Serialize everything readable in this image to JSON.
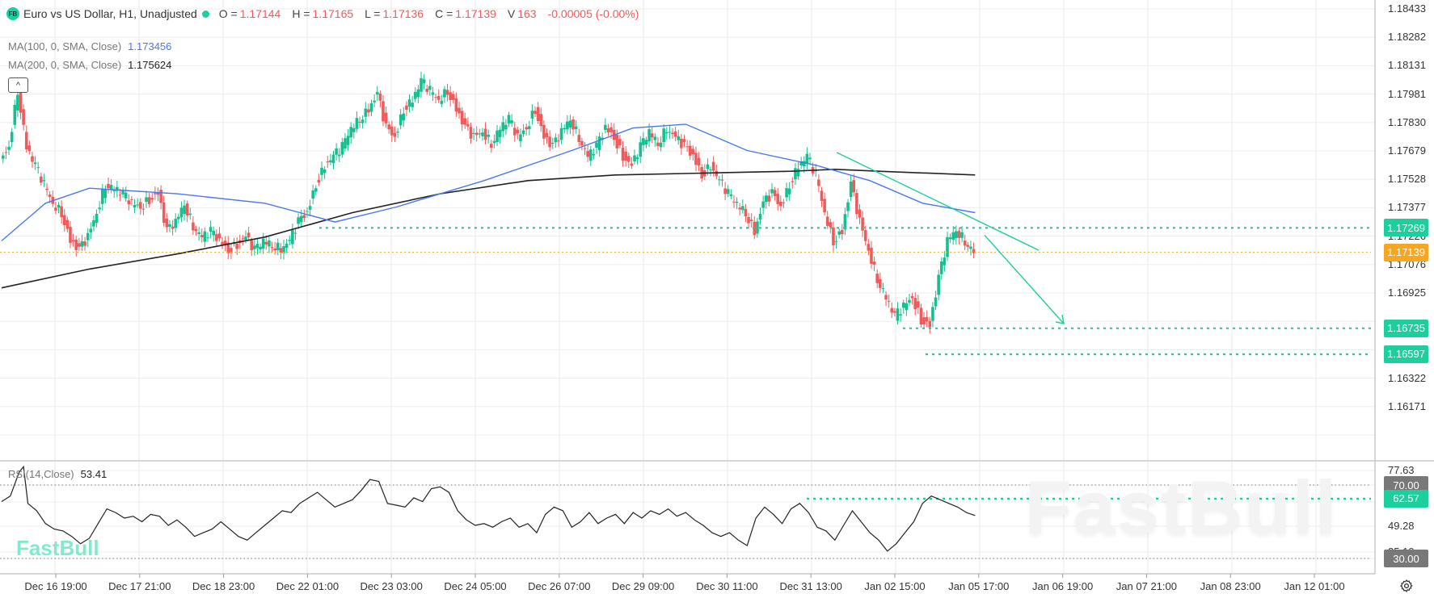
{
  "header": {
    "logo_text": "FB",
    "title": "Euro vs US Dollar, H1, Unadjusted",
    "status_color": "#1ccf9c",
    "ohlc": [
      {
        "label": "O =",
        "value": "1.17144"
      },
      {
        "label": "H =",
        "value": "1.17165"
      },
      {
        "label": "L =",
        "value": "1.17136"
      },
      {
        "label": "C =",
        "value": "1.17139"
      },
      {
        "label": "V",
        "value": "163"
      }
    ],
    "change": "-0.00005 (-0.00%)"
  },
  "indicators": {
    "ma100": {
      "label": "MA(100, 0, SMA, Close)",
      "value": "1.173456",
      "color": "#4a78f0"
    },
    "ma200": {
      "label": "MA(200, 0, SMA, Close)",
      "value": "1.175624",
      "color": "#222222"
    },
    "rsi": {
      "label": "RSI(14,Close)",
      "value": "53.41"
    }
  },
  "collapse_icon": "^",
  "price_axis": {
    "ticks": [
      "1.18433",
      "1.18282",
      "1.18131",
      "1.17981",
      "1.17830",
      "1.17679",
      "1.17528",
      "1.17377",
      "1.17226",
      "1.17076",
      "1.16925",
      "1.16774",
      "1.16472",
      "1.16322",
      "1.16171"
    ],
    "badges": [
      {
        "value": "1.17269",
        "color": "#1ccf9c"
      },
      {
        "value": "1.17139",
        "color": "#f5a623"
      },
      {
        "value": "1.16735",
        "color": "#1ccf9c"
      },
      {
        "value": "1.16597",
        "color": "#1ccf9c"
      }
    ]
  },
  "rsi_axis": {
    "ticks": [
      "77.63",
      "49.28",
      "35.10"
    ],
    "badges": [
      {
        "value": "70.00",
        "color": "#787878"
      },
      {
        "value": "62.57",
        "color": "#1ccf9c"
      },
      {
        "value": "30.00",
        "color": "#787878"
      }
    ]
  },
  "x_axis": {
    "labels": [
      "Dec 16 19:00",
      "Dec 17 21:00",
      "Dec 18 23:00",
      "Dec 22 01:00",
      "Dec 23 03:00",
      "Dec 24 05:00",
      "Dec 26 07:00",
      "Dec 29 09:00",
      "Dec 30 11:00",
      "Dec 31 13:00",
      "Jan 02 15:00",
      "Jan 05 17:00",
      "Jan 06 19:00",
      "Jan 07 21:00",
      "Jan 08 23:00",
      "Jan 12 01:00"
    ]
  },
  "watermark": "FastBull",
  "colors": {
    "up": "#12c18f",
    "down": "#f05a5a",
    "ma100": "#4a78f0",
    "ma200": "#222222",
    "level": "#1ccf9c",
    "last": "#f5a623"
  },
  "chart_data": {
    "type": "candlestick",
    "title": "Euro vs US Dollar, H1, Unadjusted",
    "symbol": "EURUSD",
    "timeframe": "H1",
    "last_bar": {
      "open": 1.17144,
      "high": 1.17165,
      "low": 1.17136,
      "close": 1.17139,
      "volume": 163
    },
    "ylim": [
      1.1609,
      1.185
    ],
    "x_ticks": [
      "Dec 16 19:00",
      "Dec 17 21:00",
      "Dec 18 23:00",
      "Dec 22 01:00",
      "Dec 23 03:00",
      "Dec 24 05:00",
      "Dec 26 07:00",
      "Dec 29 09:00",
      "Dec 30 11:00",
      "Dec 31 13:00",
      "Jan 02 15:00",
      "Jan 05 17:00",
      "Jan 06 19:00",
      "Jan 07 21:00",
      "Jan 08 23:00",
      "Jan 12 01:00"
    ],
    "close_path": [
      [
        0,
        1.1762
      ],
      [
        10,
        1.177
      ],
      [
        20,
        1.18
      ],
      [
        30,
        1.177
      ],
      [
        40,
        1.176
      ],
      [
        50,
        1.175
      ],
      [
        60,
        1.174
      ],
      [
        70,
        1.1735
      ],
      [
        80,
        1.172
      ],
      [
        90,
        1.1715
      ],
      [
        100,
        1.1722
      ],
      [
        110,
        1.1735
      ],
      [
        120,
        1.175
      ],
      [
        130,
        1.1748
      ],
      [
        140,
        1.1745
      ],
      [
        150,
        1.174
      ],
      [
        160,
        1.1738
      ],
      [
        170,
        1.1742
      ],
      [
        180,
        1.1745
      ],
      [
        190,
        1.1725
      ],
      [
        200,
        1.173
      ],
      [
        210,
        1.174
      ],
      [
        220,
        1.1728
      ],
      [
        230,
        1.1722
      ],
      [
        240,
        1.1725
      ],
      [
        250,
        1.172
      ],
      [
        260,
        1.1715
      ],
      [
        270,
        1.1718
      ],
      [
        280,
        1.1722
      ],
      [
        290,
        1.1715
      ],
      [
        300,
        1.172
      ],
      [
        310,
        1.1718
      ],
      [
        320,
        1.1716
      ],
      [
        330,
        1.172
      ],
      [
        340,
        1.173
      ],
      [
        350,
        1.1735
      ],
      [
        360,
        1.175
      ],
      [
        370,
        1.176
      ],
      [
        380,
        1.1765
      ],
      [
        390,
        1.177
      ],
      [
        400,
        1.178
      ],
      [
        410,
        1.1785
      ],
      [
        420,
        1.179
      ],
      [
        430,
        1.1798
      ],
      [
        440,
        1.178
      ],
      [
        450,
        1.1775
      ],
      [
        460,
        1.179
      ],
      [
        470,
        1.1795
      ],
      [
        480,
        1.1805
      ],
      [
        490,
        1.18
      ],
      [
        500,
        1.1795
      ],
      [
        510,
        1.18
      ],
      [
        520,
        1.179
      ],
      [
        530,
        1.178
      ],
      [
        540,
        1.1775
      ],
      [
        550,
        1.1778
      ],
      [
        560,
        1.1772
      ],
      [
        570,
        1.178
      ],
      [
        580,
        1.1785
      ],
      [
        590,
        1.1775
      ],
      [
        600,
        1.178
      ],
      [
        610,
        1.179
      ],
      [
        620,
        1.1775
      ],
      [
        630,
        1.177
      ],
      [
        640,
        1.1778
      ],
      [
        650,
        1.1785
      ],
      [
        660,
        1.1775
      ],
      [
        670,
        1.1765
      ],
      [
        680,
        1.177
      ],
      [
        690,
        1.178
      ],
      [
        700,
        1.1775
      ],
      [
        710,
        1.1765
      ],
      [
        720,
        1.176
      ],
      [
        730,
        1.177
      ],
      [
        740,
        1.1778
      ],
      [
        750,
        1.1772
      ],
      [
        760,
        1.178
      ],
      [
        770,
        1.1775
      ],
      [
        780,
        1.177
      ],
      [
        790,
        1.1765
      ],
      [
        800,
        1.1755
      ],
      [
        810,
        1.176
      ],
      [
        820,
        1.1752
      ],
      [
        830,
        1.1745
      ],
      [
        840,
        1.174
      ],
      [
        850,
        1.1735
      ],
      [
        860,
        1.1725
      ],
      [
        870,
        1.174
      ],
      [
        880,
        1.1745
      ],
      [
        890,
        1.1738
      ],
      [
        900,
        1.175
      ],
      [
        910,
        1.176
      ],
      [
        920,
        1.1765
      ],
      [
        930,
        1.1755
      ],
      [
        940,
        1.1735
      ],
      [
        950,
        1.172
      ],
      [
        960,
        1.1725
      ],
      [
        970,
        1.175
      ],
      [
        980,
        1.173
      ],
      [
        990,
        1.1715
      ],
      [
        1000,
        1.17
      ],
      [
        1010,
        1.169
      ],
      [
        1020,
        1.168
      ],
      [
        1030,
        1.1685
      ],
      [
        1040,
        1.169
      ],
      [
        1050,
        1.1678
      ],
      [
        1060,
        1.1675
      ],
      [
        1070,
        1.17
      ],
      [
        1080,
        1.172
      ],
      [
        1090,
        1.1726
      ],
      [
        1100,
        1.172
      ],
      [
        1110,
        1.1714
      ]
    ],
    "ma100_path": [
      [
        0,
        1.172
      ],
      [
        50,
        1.174
      ],
      [
        100,
        1.1748
      ],
      [
        200,
        1.1745
      ],
      [
        300,
        1.174
      ],
      [
        380,
        1.173
      ],
      [
        450,
        1.1738
      ],
      [
        550,
        1.1752
      ],
      [
        650,
        1.1768
      ],
      [
        720,
        1.178
      ],
      [
        780,
        1.1782
      ],
      [
        850,
        1.1768
      ],
      [
        930,
        1.176
      ],
      [
        990,
        1.1752
      ],
      [
        1050,
        1.174
      ],
      [
        1110,
        1.1735
      ]
    ],
    "ma200_path": [
      [
        0,
        1.1695
      ],
      [
        100,
        1.1705
      ],
      [
        200,
        1.1713
      ],
      [
        300,
        1.1722
      ],
      [
        400,
        1.1735
      ],
      [
        500,
        1.1745
      ],
      [
        600,
        1.1752
      ],
      [
        700,
        1.1755
      ],
      [
        800,
        1.1756
      ],
      [
        900,
        1.1757
      ],
      [
        950,
        1.1758
      ],
      [
        1000,
        1.1757
      ],
      [
        1110,
        1.1755
      ]
    ],
    "levels": [
      1.17269,
      1.16735,
      1.16597
    ],
    "last_price": 1.17139,
    "trendline": {
      "from": [
        1035,
        1.1767
      ],
      "to": [
        1285,
        1.1715
      ]
    },
    "arrow": {
      "from": [
        1218,
        1.1723
      ],
      "to": [
        1316,
        1.1676
      ]
    },
    "rsi": {
      "period": 14,
      "value": 53.41,
      "levels": [
        70,
        30
      ],
      "marker": 62.57,
      "ylim": [
        25,
        82
      ],
      "series": [
        [
          0,
          61
        ],
        [
          10,
          64
        ],
        [
          20,
          77
        ],
        [
          25,
          80
        ],
        [
          30,
          60
        ],
        [
          40,
          56
        ],
        [
          50,
          49
        ],
        [
          60,
          46
        ],
        [
          70,
          45
        ],
        [
          80,
          42
        ],
        [
          90,
          38
        ],
        [
          100,
          41
        ],
        [
          110,
          49
        ],
        [
          120,
          57
        ],
        [
          130,
          55
        ],
        [
          140,
          52
        ],
        [
          150,
          53
        ],
        [
          160,
          50
        ],
        [
          170,
          54
        ],
        [
          180,
          53
        ],
        [
          190,
          48
        ],
        [
          200,
          51
        ],
        [
          210,
          47
        ],
        [
          220,
          42
        ],
        [
          230,
          44
        ],
        [
          240,
          46
        ],
        [
          250,
          50
        ],
        [
          260,
          46
        ],
        [
          270,
          42
        ],
        [
          280,
          40
        ],
        [
          290,
          44
        ],
        [
          300,
          48
        ],
        [
          310,
          52
        ],
        [
          320,
          56
        ],
        [
          330,
          55
        ],
        [
          340,
          60
        ],
        [
          350,
          63
        ],
        [
          360,
          66
        ],
        [
          370,
          62
        ],
        [
          380,
          58
        ],
        [
          390,
          60
        ],
        [
          400,
          62
        ],
        [
          410,
          67
        ],
        [
          420,
          73
        ],
        [
          430,
          72
        ],
        [
          440,
          60
        ],
        [
          450,
          59
        ],
        [
          460,
          58
        ],
        [
          470,
          63
        ],
        [
          480,
          61
        ],
        [
          490,
          68
        ],
        [
          500,
          69
        ],
        [
          510,
          66
        ],
        [
          520,
          56
        ],
        [
          530,
          51
        ],
        [
          540,
          48
        ],
        [
          550,
          49
        ],
        [
          560,
          47
        ],
        [
          570,
          50
        ],
        [
          580,
          52
        ],
        [
          590,
          47
        ],
        [
          600,
          49
        ],
        [
          610,
          44
        ],
        [
          620,
          54
        ],
        [
          630,
          58
        ],
        [
          640,
          56
        ],
        [
          650,
          47
        ],
        [
          660,
          50
        ],
        [
          670,
          55
        ],
        [
          680,
          49
        ],
        [
          690,
          52
        ],
        [
          700,
          54
        ],
        [
          710,
          49
        ],
        [
          720,
          55
        ],
        [
          730,
          52
        ],
        [
          740,
          56
        ],
        [
          750,
          54
        ],
        [
          760,
          57
        ],
        [
          770,
          53
        ],
        [
          780,
          55
        ],
        [
          790,
          51
        ],
        [
          800,
          48
        ],
        [
          810,
          44
        ],
        [
          820,
          42
        ],
        [
          830,
          44
        ],
        [
          840,
          40
        ],
        [
          850,
          37
        ],
        [
          860,
          52
        ],
        [
          870,
          58
        ],
        [
          880,
          54
        ],
        [
          890,
          49
        ],
        [
          900,
          57
        ],
        [
          910,
          60
        ],
        [
          920,
          55
        ],
        [
          930,
          47
        ],
        [
          940,
          45
        ],
        [
          950,
          40
        ],
        [
          960,
          48
        ],
        [
          970,
          56
        ],
        [
          980,
          50
        ],
        [
          990,
          44
        ],
        [
          1000,
          40
        ],
        [
          1010,
          34
        ],
        [
          1020,
          38
        ],
        [
          1030,
          44
        ],
        [
          1040,
          50
        ],
        [
          1050,
          60
        ],
        [
          1060,
          64
        ],
        [
          1070,
          62
        ],
        [
          1080,
          60
        ],
        [
          1090,
          58
        ],
        [
          1100,
          55
        ],
        [
          1110,
          53.4
        ]
      ]
    }
  }
}
